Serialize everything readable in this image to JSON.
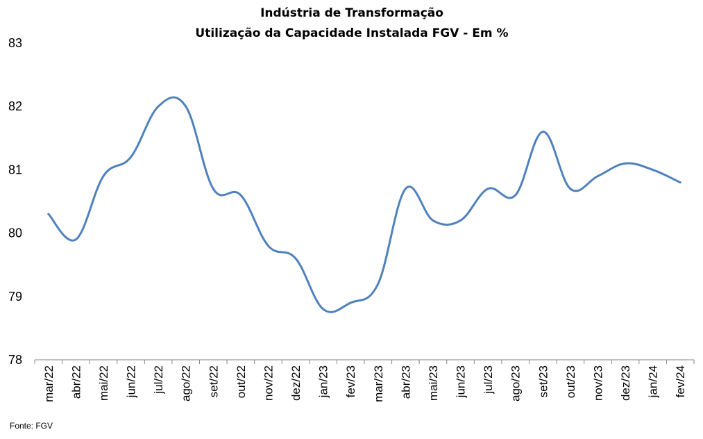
{
  "chart_data": {
    "type": "line",
    "title": "Indústria de Transformação",
    "subtitle": "Utilização da Capacidade Instalada FGV - Em %",
    "xlabel": "",
    "ylabel": "",
    "categories": [
      "mar/22",
      "abr/22",
      "mai/22",
      "jun/22",
      "jul/22",
      "ago/22",
      "set/22",
      "out/22",
      "nov/22",
      "dez/22",
      "jan/23",
      "fev/23",
      "mar/23",
      "abr/23",
      "mai/23",
      "jun/23",
      "jul/23",
      "ago/23",
      "set/23",
      "out/23",
      "nov/23",
      "dez/23",
      "jan/24",
      "fev/24"
    ],
    "series": [
      {
        "values": [
          80.3,
          79.9,
          80.9,
          81.2,
          82.0,
          82.0,
          80.7,
          80.6,
          79.8,
          79.6,
          78.8,
          78.9,
          79.2,
          80.7,
          80.2,
          80.2,
          80.7,
          80.6,
          81.6,
          80.7,
          80.9,
          81.1,
          81.0,
          80.8
        ]
      }
    ],
    "ylim": [
      78,
      83
    ],
    "yticks": [
      "78",
      "79",
      "80",
      "81",
      "82",
      "83"
    ],
    "grid": false,
    "legend": "none",
    "line_color": "#4f81bd"
  },
  "source": "Fonte: FGV"
}
